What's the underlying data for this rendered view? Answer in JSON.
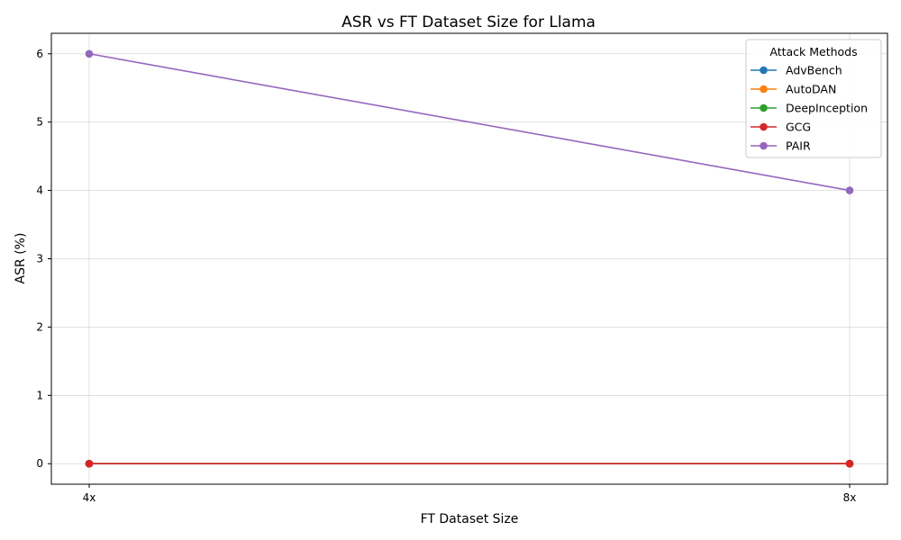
{
  "chart_data": {
    "type": "line",
    "title": "ASR vs FT Dataset Size for Llama",
    "xlabel": "FT Dataset Size",
    "ylabel": "ASR (%)",
    "categories": [
      "4x",
      "8x"
    ],
    "yticks": [
      "0",
      "1",
      "2",
      "3",
      "4",
      "5",
      "6"
    ],
    "ylim": [
      -0.3,
      6.3
    ],
    "grid": true,
    "legend": {
      "title": "Attack Methods",
      "placement": "top-right"
    },
    "series": [
      {
        "name": "AdvBench",
        "values": [
          0,
          0
        ],
        "color": "#1f77b4"
      },
      {
        "name": "AutoDAN",
        "values": [
          0,
          0
        ],
        "color": "#ff7f0e"
      },
      {
        "name": "DeepInception",
        "values": [
          0,
          0
        ],
        "color": "#2ca02c"
      },
      {
        "name": "GCG",
        "values": [
          0,
          0
        ],
        "color": "#d62728"
      },
      {
        "name": "PAIR",
        "values": [
          6,
          4
        ],
        "color": "#9467bd"
      }
    ]
  }
}
